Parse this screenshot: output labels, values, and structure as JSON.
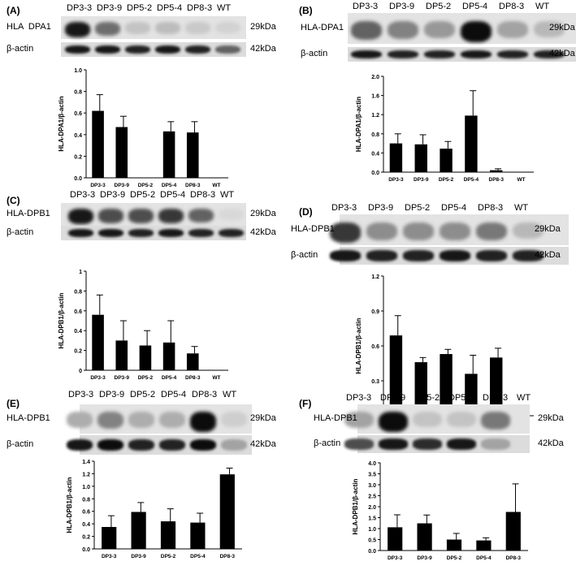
{
  "lanes": [
    "DP3-3",
    "DP3-9",
    "DP5-2",
    "DP5-4",
    "DP8-3",
    "WT"
  ],
  "actin_label": "β-actin",
  "kda_target": "29kDa",
  "kda_actin": "42kDa",
  "panels": [
    {
      "letter": "(A)",
      "target_label": "HLA  DPA1"
    },
    {
      "letter": "(B)",
      "target_label": "HLA-DPA1"
    },
    {
      "letter": "(C)",
      "target_label": "HLA-DPB1"
    },
    {
      "letter": "(D)",
      "target_label": "HLA-DPB1"
    },
    {
      "letter": "(E)",
      "target_label": "HLA-DPB1"
    },
    {
      "letter": "(F)",
      "target_label": "HLA-DPB1"
    }
  ],
  "blot_colors": {
    "band": "#101010",
    "background": "#e3e3e3"
  },
  "chart_data": [
    {
      "panel": "(A)",
      "type": "bar",
      "categories": [
        "DP3-3",
        "DP3-9",
        "DP5-2",
        "DP5-4",
        "DP8-3",
        "WT"
      ],
      "values": [
        0.62,
        0.47,
        0,
        0.43,
        0.42,
        0
      ],
      "errors": [
        0.15,
        0.1,
        0,
        0.09,
        0.1,
        0
      ],
      "ylabel": "HLA-DPA1/β-actin",
      "ylim": [
        0,
        1.0
      ],
      "yticks": [
        "0.0",
        "0.2",
        "0.4",
        "0.6",
        "0.8",
        "1.0"
      ]
    },
    {
      "panel": "(B)",
      "type": "bar",
      "categories": [
        "DP3-3",
        "DP3-9",
        "DP5-2",
        "DP5-4",
        "DP8-3",
        "WT"
      ],
      "values": [
        0.6,
        0.58,
        0.49,
        1.18,
        0.04,
        0
      ],
      "errors": [
        0.2,
        0.2,
        0.15,
        0.52,
        0.03,
        0
      ],
      "ylabel": "HLA-DPA1/β-actin",
      "ylim": [
        0,
        2.0
      ],
      "yticks": [
        "0.0",
        "0.4",
        "0.8",
        "1.2",
        "1.6",
        "2.0"
      ]
    },
    {
      "panel": "(C)",
      "type": "bar",
      "categories": [
        "DP3-3",
        "DP3-9",
        "DP5-2",
        "DP5-4",
        "DP8-3",
        "WT"
      ],
      "values": [
        0.56,
        0.3,
        0.25,
        0.28,
        0.17,
        0
      ],
      "errors": [
        0.2,
        0.2,
        0.15,
        0.22,
        0.07,
        0
      ],
      "ylabel": "HLA-DPB1/β-actin",
      "ylim": [
        0,
        1.0
      ],
      "yticks": [
        "0",
        "0.2",
        "0.4",
        "0.6",
        "0.8",
        "1"
      ]
    },
    {
      "panel": "(D)",
      "type": "bar",
      "categories": [
        "DP3-3",
        "DP3-9",
        "DP5-2",
        "DP5-4",
        "DP8-3",
        "WT"
      ],
      "values": [
        0.69,
        0.46,
        0.53,
        0.36,
        0.5,
        0
      ],
      "errors": [
        0.17,
        0.04,
        0.04,
        0.16,
        0.08,
        0
      ],
      "ylabel": "HLA-DPB1/β-actin",
      "ylim": [
        0,
        1.2
      ],
      "yticks": [
        "0.0",
        "0.3",
        "0.6",
        "0.9",
        "1.2"
      ]
    },
    {
      "panel": "(E)",
      "type": "bar",
      "categories": [
        "DP3-3",
        "DP3-9",
        "DP5-2",
        "DP5-4",
        "DP8-3"
      ],
      "values": [
        0.35,
        0.59,
        0.44,
        0.42,
        1.19
      ],
      "errors": [
        0.18,
        0.15,
        0.2,
        0.15,
        0.1
      ],
      "ylabel": "HLA-DPB1/β-actin",
      "ylim": [
        0,
        1.4
      ],
      "yticks": [
        "0.0",
        "0.2",
        "0.4",
        "0.6",
        "0.8",
        "1.0",
        "1.2",
        "1.4"
      ]
    },
    {
      "panel": "(F)",
      "type": "bar",
      "categories": [
        "DP3-3",
        "DP3-9",
        "DP5-2",
        "DP5-4",
        "DP8-3"
      ],
      "values": [
        1.06,
        1.24,
        0.5,
        0.46,
        1.76
      ],
      "errors": [
        0.57,
        0.38,
        0.28,
        0.12,
        1.28
      ],
      "ylabel": "HLA-DPB1/β-actin",
      "ylim": [
        0,
        4.0
      ],
      "yticks": [
        "0.0",
        "0.5",
        "1.0",
        "1.5",
        "2.0",
        "2.5",
        "3.0",
        "3.5",
        "4.0"
      ]
    }
  ]
}
